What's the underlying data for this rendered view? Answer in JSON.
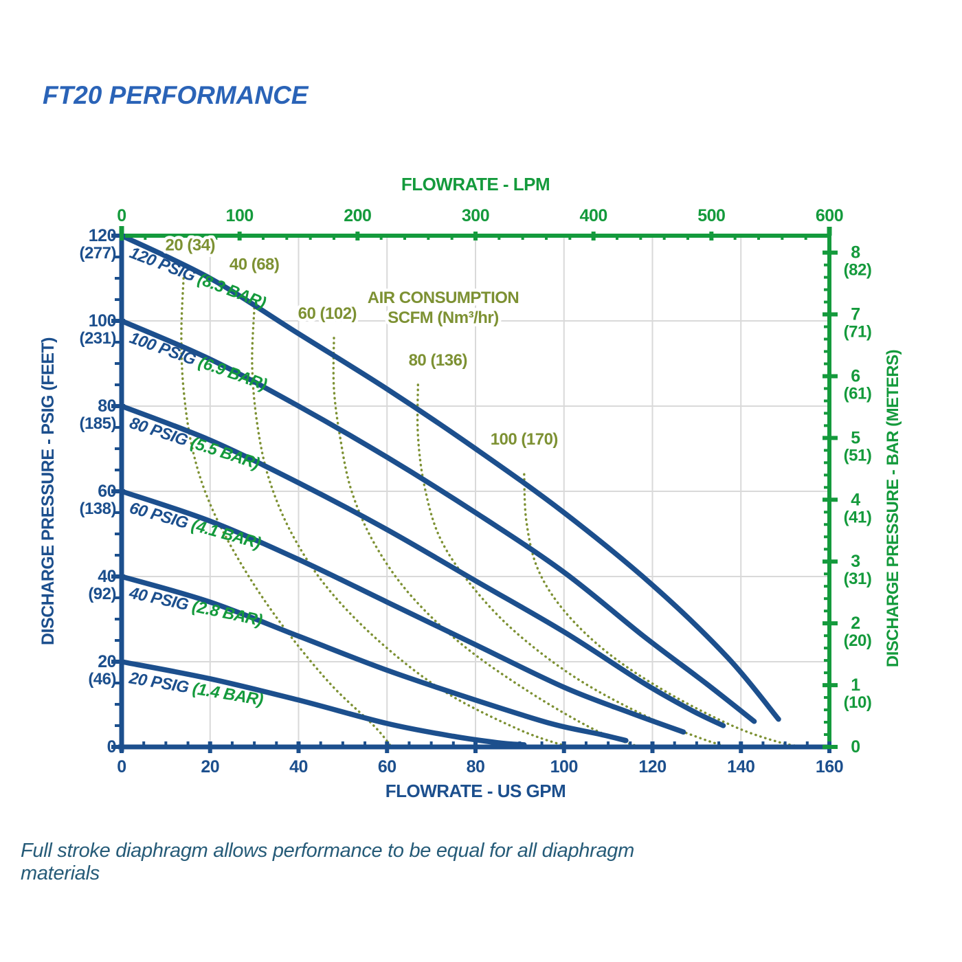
{
  "title": "FT20 PERFORMANCE",
  "footnote": "Full stroke diaphragm allows performance to be equal for all diaphragm materials",
  "colors": {
    "navy": "#1c4f8d",
    "green": "#149a3c",
    "olive": "#7d9133",
    "grid": "#d9d9d9",
    "title_blue": "#2a63b7",
    "footnote_blue": "#265b78"
  },
  "chart_data": {
    "type": "line",
    "title": "FT20 PERFORMANCE",
    "grid": true,
    "x_axis_bottom": {
      "label": "FLOWRATE - US GPM",
      "min": 0,
      "max": 160,
      "major_tick": 20,
      "minor_tick": 5,
      "tick_labels": [
        "0",
        "20",
        "40",
        "60",
        "80",
        "100",
        "120",
        "140",
        "160"
      ]
    },
    "x_axis_top": {
      "label": "FLOWRATE - LPM",
      "min": 0,
      "max": 600,
      "major_tick": 100,
      "minor_tick": 20,
      "tick_labels": [
        "0",
        "100",
        "200",
        "300",
        "400",
        "500",
        "600"
      ]
    },
    "y_axis_left": {
      "label": "DISCHARGE PRESSURE  - PSIG (FEET)",
      "min": 0,
      "max": 120,
      "major_tick": 20,
      "minor_tick": 5,
      "tick_labels": [
        {
          "value": 120,
          "label": "120",
          "sub": "(277)"
        },
        {
          "value": 100,
          "label": "100",
          "sub": "(231)"
        },
        {
          "value": 80,
          "label": "80",
          "sub": "(185)"
        },
        {
          "value": 60,
          "label": "60",
          "sub": "(138)"
        },
        {
          "value": 40,
          "label": "40",
          "sub": "(92)"
        },
        {
          "value": 20,
          "label": "20",
          "sub": "(46)"
        },
        {
          "value": 0,
          "label": "0",
          "sub": ""
        }
      ]
    },
    "y_axis_right": {
      "label": "DISCHARGE PRESSURE - BAR (METERS)",
      "min": 0,
      "max": 8,
      "major_tick": 1,
      "minor_tick": 0.2,
      "psi_per_bar": 14.5038,
      "tick_labels": [
        {
          "value": 8,
          "label": "8",
          "sub": "(82)"
        },
        {
          "value": 7,
          "label": "7",
          "sub": "(71)"
        },
        {
          "value": 6,
          "label": "6",
          "sub": "(61)"
        },
        {
          "value": 5,
          "label": "5",
          "sub": "(51)"
        },
        {
          "value": 4,
          "label": "4",
          "sub": "(41)"
        },
        {
          "value": 3,
          "label": "3",
          "sub": "(31)"
        },
        {
          "value": 2,
          "label": "2",
          "sub": "(20)"
        },
        {
          "value": 1,
          "label": "1",
          "sub": "(10)"
        },
        {
          "value": 0,
          "label": "0",
          "sub": ""
        }
      ]
    },
    "series": [
      {
        "name": "120 PSIG curve",
        "psig_label": "120 PSIG",
        "bar_label": "(8.3 BAR)",
        "points": [
          [
            0,
            120
          ],
          [
            20,
            110
          ],
          [
            40,
            97
          ],
          [
            60,
            84
          ],
          [
            80,
            70
          ],
          [
            100,
            55
          ],
          [
            120,
            38
          ],
          [
            137,
            21
          ],
          [
            148.5,
            6.5
          ]
        ]
      },
      {
        "name": "100 PSIG curve",
        "psig_label": "100 PSIG",
        "bar_label": "(6.9 BAR)",
        "points": [
          [
            0,
            100
          ],
          [
            20,
            91
          ],
          [
            40,
            80
          ],
          [
            60,
            68
          ],
          [
            80,
            55
          ],
          [
            100,
            41
          ],
          [
            118,
            26
          ],
          [
            132,
            15
          ],
          [
            143,
            6
          ]
        ]
      },
      {
        "name": "80 PSIG curve",
        "psig_label": "80 PSIG",
        "bar_label": "(5.5 BAR)",
        "points": [
          [
            0,
            80
          ],
          [
            20,
            72
          ],
          [
            40,
            62
          ],
          [
            60,
            51
          ],
          [
            80,
            39
          ],
          [
            100,
            27
          ],
          [
            118,
            15
          ],
          [
            129,
            8.5
          ],
          [
            136,
            5
          ]
        ]
      },
      {
        "name": "60 PSIG curve",
        "psig_label": "60 PSIG",
        "bar_label": "(4.1 BAR)",
        "points": [
          [
            0,
            60
          ],
          [
            20,
            53
          ],
          [
            40,
            44
          ],
          [
            60,
            34
          ],
          [
            80,
            24
          ],
          [
            100,
            14
          ],
          [
            115,
            8
          ],
          [
            127,
            3.5
          ]
        ]
      },
      {
        "name": "40 PSIG curve",
        "psig_label": "40 PSIG",
        "bar_label": "(2.8 BAR)",
        "points": [
          [
            0,
            40
          ],
          [
            20,
            34
          ],
          [
            40,
            26
          ],
          [
            60,
            18
          ],
          [
            80,
            11
          ],
          [
            97,
            5.5
          ],
          [
            108,
            3
          ],
          [
            114,
            1.5
          ]
        ]
      },
      {
        "name": "20 PSIG curve",
        "psig_label": "20 PSIG",
        "bar_label": "(1.4 BAR)",
        "points": [
          [
            0,
            20
          ],
          [
            20,
            16
          ],
          [
            40,
            11
          ],
          [
            60,
            5.5
          ],
          [
            75,
            2.5
          ],
          [
            85,
            1
          ],
          [
            91,
            0.5
          ]
        ]
      }
    ],
    "air_curves": [
      {
        "scfm": 20,
        "label": "20 (34)",
        "label_at": [
          15.5,
          116.5
        ],
        "points": [
          [
            14,
            110
          ],
          [
            13.5,
            97
          ],
          [
            14,
            84
          ],
          [
            16,
            70
          ],
          [
            20,
            57
          ],
          [
            27,
            43
          ],
          [
            36,
            29
          ],
          [
            47,
            15
          ],
          [
            57,
            5
          ],
          [
            61,
            0
          ]
        ]
      },
      {
        "scfm": 40,
        "label": "40 (68)",
        "label_at": [
          30,
          112
        ],
        "points": [
          [
            30,
            103
          ],
          [
            29.5,
            90
          ],
          [
            30.5,
            77
          ],
          [
            33,
            64
          ],
          [
            38,
            51
          ],
          [
            46,
            38
          ],
          [
            58,
            25
          ],
          [
            73,
            13
          ],
          [
            90,
            4
          ],
          [
            101,
            0
          ]
        ]
      },
      {
        "scfm": 60,
        "label": "60 (102)",
        "label_at": [
          46.5,
          100.5
        ],
        "points": [
          [
            48,
            96
          ],
          [
            48,
            84
          ],
          [
            49.5,
            72
          ],
          [
            52,
            60
          ],
          [
            57,
            48
          ],
          [
            65,
            36
          ],
          [
            77,
            24
          ],
          [
            92,
            13
          ],
          [
            107,
            4
          ],
          [
            117,
            0
          ]
        ]
      },
      {
        "scfm": 80,
        "label": "80 (136)",
        "label_at": [
          71.5,
          89.5
        ],
        "points": [
          [
            67,
            85
          ],
          [
            67,
            73
          ],
          [
            68.5,
            61
          ],
          [
            72,
            49
          ],
          [
            79,
            38
          ],
          [
            89,
            27
          ],
          [
            103,
            16
          ],
          [
            119,
            7
          ],
          [
            131,
            2
          ],
          [
            137,
            0
          ]
        ]
      },
      {
        "scfm": 100,
        "label": "100 (170)",
        "label_at": [
          91,
          71
        ],
        "points": [
          [
            91,
            64
          ],
          [
            91.5,
            53
          ],
          [
            94,
            42
          ],
          [
            100,
            32
          ],
          [
            110,
            22
          ],
          [
            123,
            13
          ],
          [
            138,
            5
          ],
          [
            149,
            1
          ],
          [
            155,
            0
          ]
        ]
      }
    ],
    "air_legend": {
      "line1": "AIR CONSUMPTION",
      "line2": "SCFM (Nm³/hr)",
      "anchor_at": [
        72.5,
        106.5
      ]
    }
  }
}
